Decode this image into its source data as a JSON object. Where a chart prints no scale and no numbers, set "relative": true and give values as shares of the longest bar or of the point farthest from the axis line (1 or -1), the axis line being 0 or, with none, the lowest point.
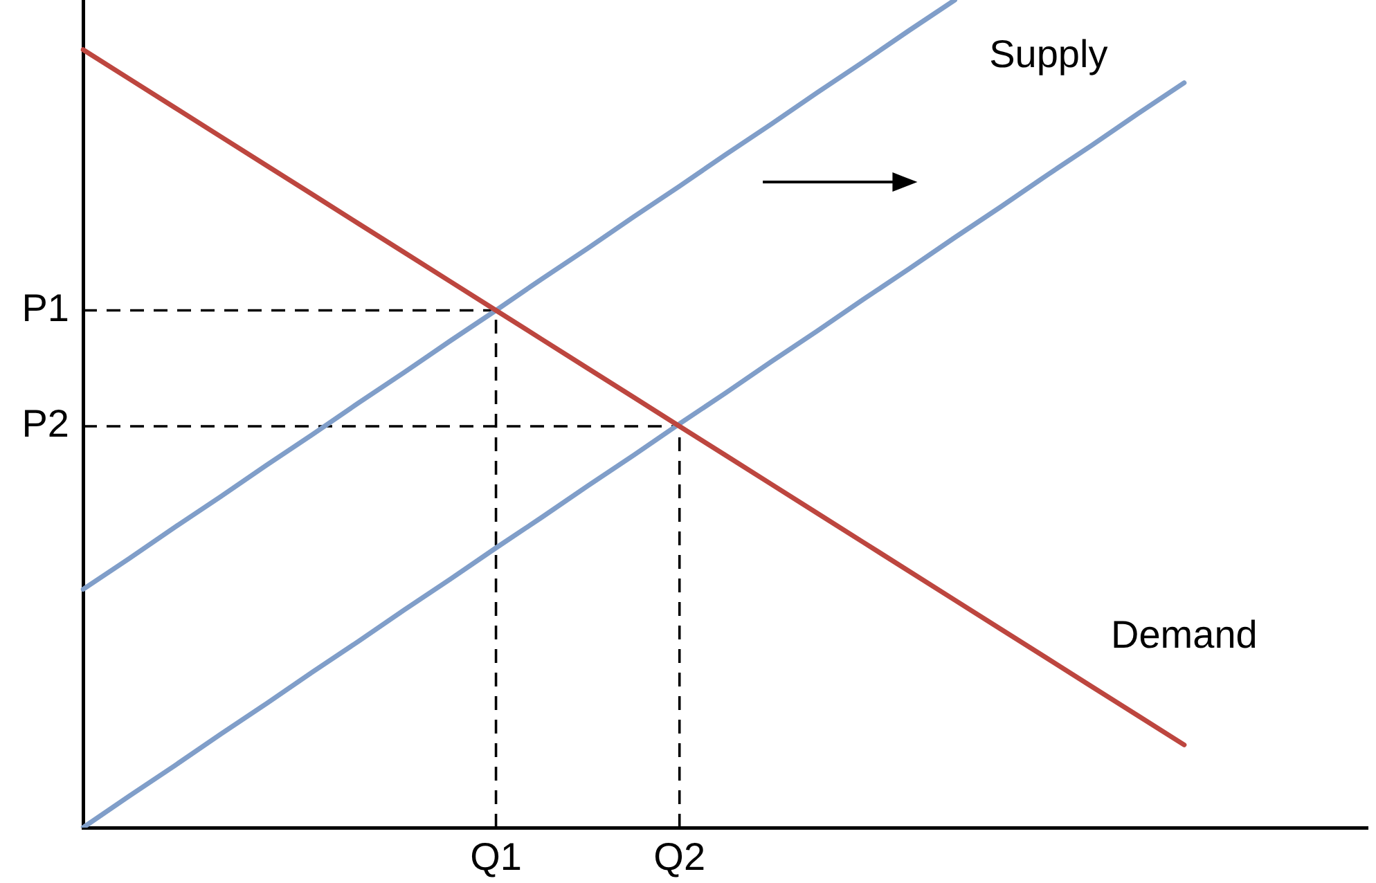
{
  "chart_data": {
    "type": "line",
    "relative": true,
    "marker": "none",
    "tick_labels": "x",
    "categories": [
      null,
      null,
      null,
      null,
      null,
      null,
      null,
      null,
      null,
      "Q1",
      null,
      null,
      null,
      "Q2",
      null,
      null,
      null,
      null,
      null,
      null,
      null,
      null,
      null,
      null,
      null,
      null,
      null,
      null,
      null
    ],
    "series": [
      {
        "name": "Demand",
        "color": "#bd463f",
        "values": [
          0.94,
          0.905,
          0.87,
          0.835,
          0.8,
          0.765,
          0.73,
          0.695,
          0.66,
          0.625,
          0.59,
          0.555,
          0.52,
          0.485,
          0.45,
          0.415,
          0.38,
          0.345,
          0.31,
          0.275,
          0.24,
          0.205,
          0.17,
          0.135,
          0.1,
          null,
          null,
          null,
          null
        ]
      },
      {
        "color": "#809ec9",
        "values": [
          0.288,
          0.325,
          0.363,
          0.4,
          0.438,
          0.475,
          0.513,
          0.55,
          0.588,
          0.625,
          0.663,
          0.7,
          0.738,
          0.775,
          0.813,
          0.85,
          0.888,
          0.925,
          0.963,
          1,
          null,
          null,
          null,
          null,
          null,
          null,
          null,
          null,
          null
        ]
      },
      {
        "name": "Supply",
        "color": "#809ec9",
        "values": [
          0,
          0.038,
          0.075,
          0.113,
          0.15,
          0.188,
          0.225,
          0.263,
          0.3,
          0.338,
          0.375,
          0.413,
          0.45,
          0.488,
          0.525,
          0.563,
          0.6,
          0.638,
          0.675,
          0.713,
          0.75,
          0.788,
          0.825,
          0.863,
          0.9,
          null,
          null,
          null,
          null
        ]
      }
    ],
    "ref_lines": [
      {
        "axis": "y",
        "value": 0.625,
        "label": "P1",
        "color": "#000000",
        "line_style": "dashed"
      },
      {
        "axis": "y",
        "value": 0.485,
        "label": "P2",
        "color": "#000000",
        "line_style": "dashed"
      },
      {
        "axis": "x",
        "value": "Q1",
        "color": "#000000",
        "line_style": "dashed"
      },
      {
        "axis": "x",
        "value": "Q2",
        "color": "#000000",
        "line_style": "dashed"
      }
    ]
  }
}
